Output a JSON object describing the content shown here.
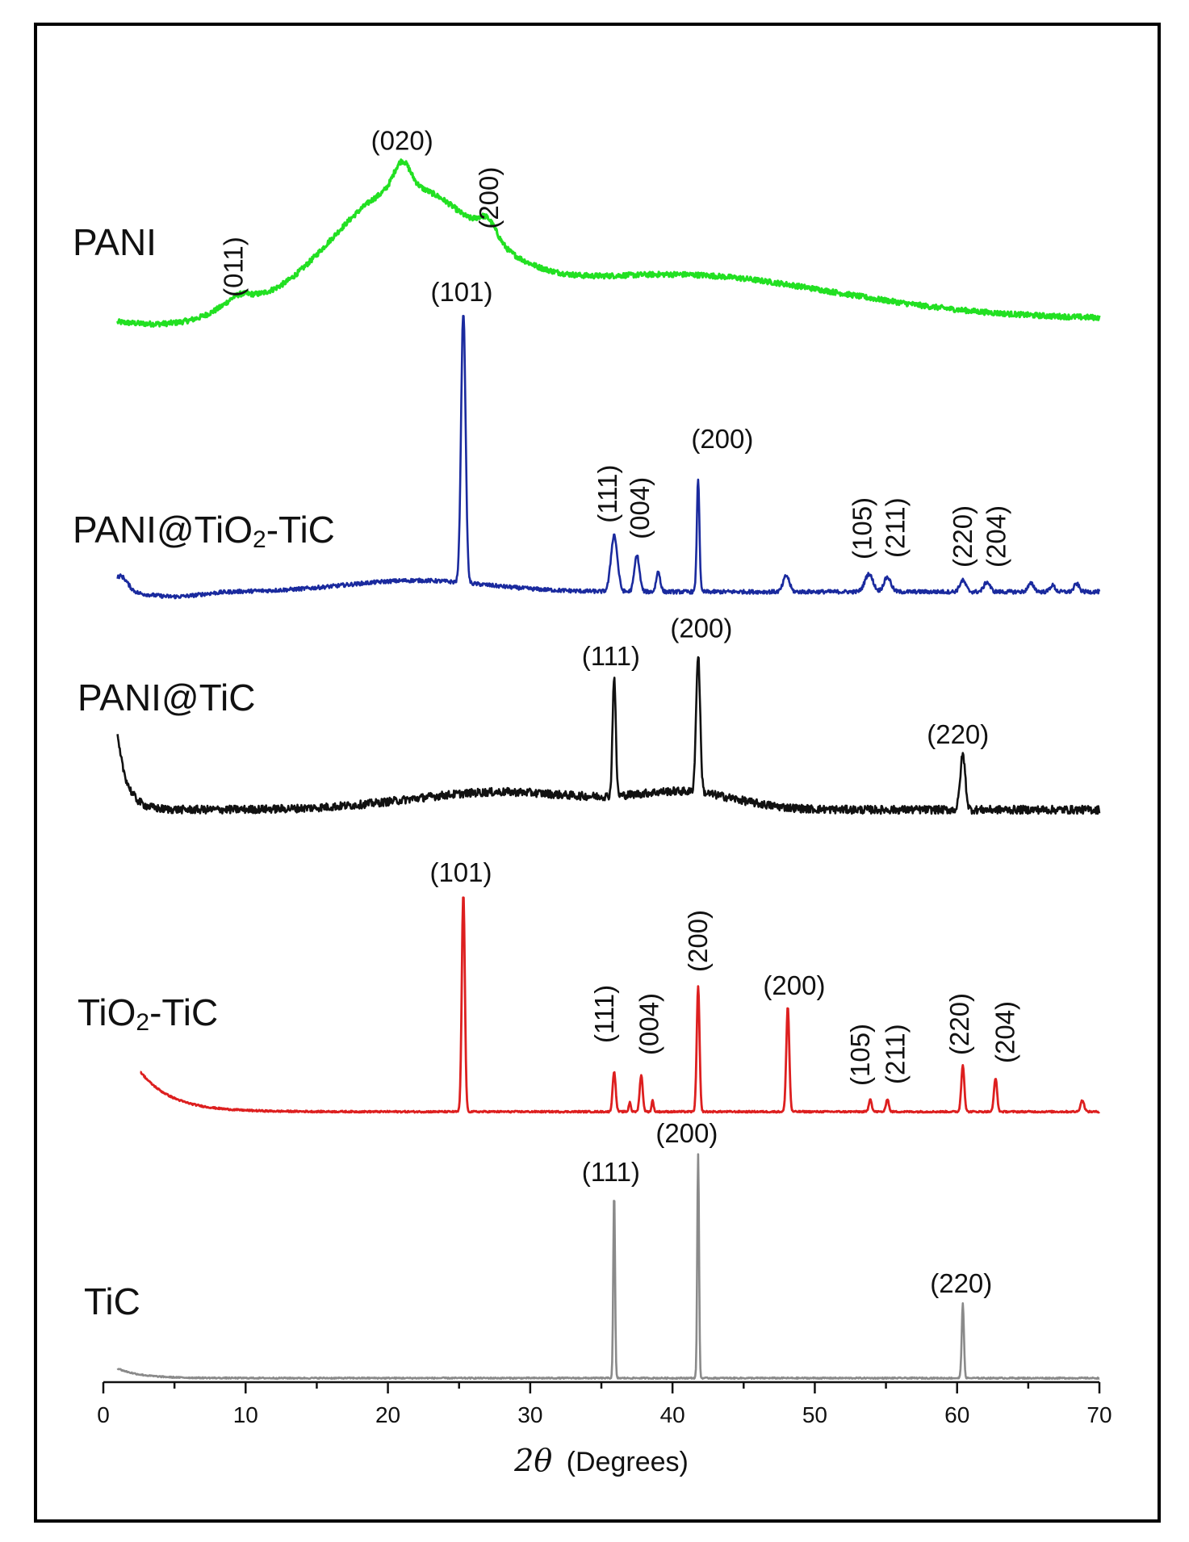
{
  "chart_data": {
    "type": "line",
    "xlabel_symbol": "2θ",
    "xlabel_unit": "(Degrees)",
    "xlim": [
      0,
      70
    ],
    "x_ticks": [
      0,
      10,
      20,
      30,
      40,
      50,
      60,
      70
    ],
    "grid": false,
    "legend": "none",
    "series": [
      {
        "name": "PANI",
        "color": "#22e022",
        "baseline": "broad amorphous hump",
        "peaks": [
          {
            "x": 9.5,
            "label": "(011)",
            "vertical": true
          },
          {
            "x": 21.0,
            "label": "(020)",
            "vertical": false
          },
          {
            "x": 27.0,
            "label": "(200)",
            "vertical": true
          }
        ]
      },
      {
        "name": "PANI@TiO2-TiC",
        "name_parts": [
          "PANI@TiO",
          "2",
          "-TiC"
        ],
        "color": "#1a2a9e",
        "peaks": [
          {
            "x": 25.3,
            "label": "(101)",
            "vertical": false
          },
          {
            "x": 35.9,
            "label": "(111)",
            "vertical": true
          },
          {
            "x": 37.5,
            "label": "(004)",
            "vertical": true
          },
          {
            "x": 39.0,
            "vertical": false
          },
          {
            "x": 41.8,
            "label": "(200)",
            "vertical": false
          },
          {
            "x": 48.0,
            "vertical": false
          },
          {
            "x": 53.8,
            "label": "(105)",
            "vertical": true
          },
          {
            "x": 55.1,
            "label": "(211)",
            "vertical": true
          },
          {
            "x": 60.4,
            "label": "(220)",
            "vertical": true
          },
          {
            "x": 62.1,
            "label": "(204)",
            "vertical": true
          },
          {
            "x": 65.2,
            "vertical": false
          },
          {
            "x": 66.7,
            "vertical": false
          },
          {
            "x": 68.4,
            "vertical": false
          }
        ]
      },
      {
        "name": "PANI@TiC",
        "color": "#111111",
        "peaks": [
          {
            "x": 35.9,
            "label": "(111)",
            "vertical": false
          },
          {
            "x": 41.8,
            "label": "(200)",
            "vertical": false
          },
          {
            "x": 60.4,
            "label": "(220)",
            "vertical": false
          }
        ]
      },
      {
        "name": "TiO2-TiC",
        "name_parts": [
          "TiO",
          "2",
          "-TiC"
        ],
        "color": "#dd1f1f",
        "peaks": [
          {
            "x": 25.3,
            "label": "(101)",
            "vertical": false
          },
          {
            "x": 35.9,
            "label": "(111)",
            "vertical": true
          },
          {
            "x": 37.0,
            "vertical": false
          },
          {
            "x": 37.8,
            "label": "(004)",
            "vertical": true
          },
          {
            "x": 38.6,
            "vertical": false
          },
          {
            "x": 41.8,
            "label": "(200)",
            "vertical": true
          },
          {
            "x": 48.1,
            "label": "(200)",
            "vertical": false
          },
          {
            "x": 53.9,
            "label": "(105)",
            "vertical": true
          },
          {
            "x": 55.1,
            "label": "(211)",
            "vertical": true
          },
          {
            "x": 60.4,
            "label": "(220)",
            "vertical": true
          },
          {
            "x": 62.7,
            "label": "(204)",
            "vertical": true
          },
          {
            "x": 68.8,
            "vertical": false
          }
        ]
      },
      {
        "name": "TiC",
        "color": "#8a8a8a",
        "peaks": [
          {
            "x": 35.9,
            "label": "(111)",
            "vertical": false
          },
          {
            "x": 41.8,
            "label": "(200)",
            "vertical": false
          },
          {
            "x": 60.4,
            "label": "(220)",
            "vertical": false
          }
        ]
      }
    ]
  }
}
